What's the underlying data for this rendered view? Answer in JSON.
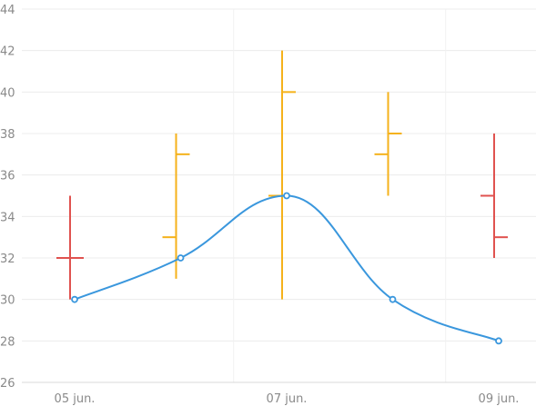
{
  "chart_data": {
    "type": "ohlc+line",
    "title": "",
    "xlabel": "",
    "ylabel": "",
    "ylim": [
      26,
      44
    ],
    "yticks": [
      26,
      28,
      30,
      32,
      34,
      36,
      38,
      40,
      42,
      44
    ],
    "yticks_labels": [
      "26",
      "28",
      "30",
      "32",
      "34",
      "36",
      "38",
      "40",
      "42",
      "44"
    ],
    "x_tick_labels": [
      "05 jun.",
      "07 jun.",
      "09 jun."
    ],
    "x_positions": [
      "05 jun.",
      "06 jun.",
      "07 jun.",
      "08 jun.",
      "09 jun."
    ],
    "grid": true,
    "ohlc": [
      {
        "x": "05 jun.",
        "open": 32,
        "high": 35,
        "low": 30,
        "close": 32,
        "color": "#e0524f"
      },
      {
        "x": "06 jun.",
        "open": 33,
        "high": 38,
        "low": 31,
        "close": 37,
        "color": "#f5b21b"
      },
      {
        "x": "07 jun.",
        "open": 35,
        "high": 42,
        "low": 30,
        "close": 40,
        "color": "#f5b21b"
      },
      {
        "x": "08 jun.",
        "open": 37,
        "high": 40,
        "low": 35,
        "close": 38,
        "color": "#f5b21b"
      },
      {
        "x": "09 jun.",
        "open": 35,
        "high": 38,
        "low": 32,
        "close": 33,
        "color": "#e0524f"
      }
    ],
    "line": {
      "color": "#3a97dd",
      "points": [
        {
          "x": "05 jun.",
          "y": 30
        },
        {
          "x": "06 jun.",
          "y": 32
        },
        {
          "x": "07 jun.",
          "y": 35
        },
        {
          "x": "08 jun.",
          "y": 30
        },
        {
          "x": "09 jun.",
          "y": 28
        }
      ]
    }
  }
}
